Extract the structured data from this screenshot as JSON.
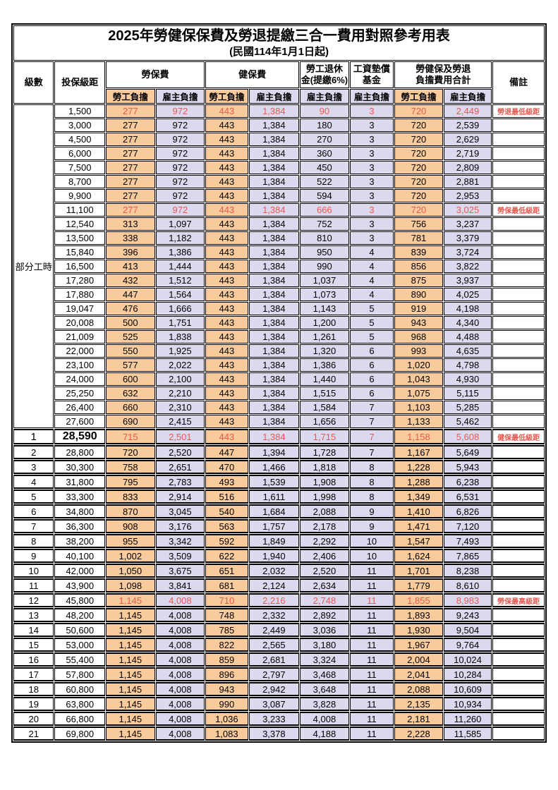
{
  "title": "2025年勞健保保費及勞退提繳三合一費用對照參考用表",
  "subtitle": "(民國114年1月1日起)",
  "header": {
    "level": "級數",
    "bracket": "投保級距",
    "labor_insurance": "勞保費",
    "health_insurance": "健保費",
    "pension_line1": "勞工退休",
    "pension_line2": "金(提繳6%)",
    "wage_fund_line1": "工資墊償",
    "wage_fund_line2": "基金",
    "total_line1": "勞健保及勞退",
    "total_line2": "負擔費用合計",
    "remark": "備註",
    "employee": "勞工負擔",
    "employer": "雇主負擔"
  },
  "part_time_label": "部分工時",
  "colors": {
    "employee_bg": "#F9CB9C",
    "employer_bg": "#DCD9EE",
    "highlight_text": "#E85850"
  },
  "rows": [
    {
      "section": "pt",
      "bracket": "1,500",
      "li_emp": "277",
      "li_er": "972",
      "hi_emp": "443",
      "hi_er": "1,384",
      "pension": "90",
      "wage_fund": "3",
      "total_emp": "720",
      "total_er": "2,449",
      "red": true,
      "remark": "勞退最低級距"
    },
    {
      "section": "pt",
      "bracket": "3,000",
      "li_emp": "277",
      "li_er": "972",
      "hi_emp": "443",
      "hi_er": "1,384",
      "pension": "180",
      "wage_fund": "3",
      "total_emp": "720",
      "total_er": "2,539",
      "red": false,
      "remark": ""
    },
    {
      "section": "pt",
      "bracket": "4,500",
      "li_emp": "277",
      "li_er": "972",
      "hi_emp": "443",
      "hi_er": "1,384",
      "pension": "270",
      "wage_fund": "3",
      "total_emp": "720",
      "total_er": "2,629",
      "red": false,
      "remark": ""
    },
    {
      "section": "pt",
      "bracket": "6,000",
      "li_emp": "277",
      "li_er": "972",
      "hi_emp": "443",
      "hi_er": "1,384",
      "pension": "360",
      "wage_fund": "3",
      "total_emp": "720",
      "total_er": "2,719",
      "red": false,
      "remark": ""
    },
    {
      "section": "pt",
      "bracket": "7,500",
      "li_emp": "277",
      "li_er": "972",
      "hi_emp": "443",
      "hi_er": "1,384",
      "pension": "450",
      "wage_fund": "3",
      "total_emp": "720",
      "total_er": "2,809",
      "red": false,
      "remark": ""
    },
    {
      "section": "pt",
      "bracket": "8,700",
      "li_emp": "277",
      "li_er": "972",
      "hi_emp": "443",
      "hi_er": "1,384",
      "pension": "522",
      "wage_fund": "3",
      "total_emp": "720",
      "total_er": "2,881",
      "red": false,
      "remark": ""
    },
    {
      "section": "pt",
      "bracket": "9,900",
      "li_emp": "277",
      "li_er": "972",
      "hi_emp": "443",
      "hi_er": "1,384",
      "pension": "594",
      "wage_fund": "3",
      "total_emp": "720",
      "total_er": "2,953",
      "red": false,
      "remark": ""
    },
    {
      "section": "pt",
      "bracket": "11,100",
      "li_emp": "277",
      "li_er": "972",
      "hi_emp": "443",
      "hi_er": "1,384",
      "pension": "666",
      "wage_fund": "3",
      "total_emp": "720",
      "total_er": "3,025",
      "red": true,
      "remark": "勞保最低級距"
    },
    {
      "section": "pt",
      "bracket": "12,540",
      "li_emp": "313",
      "li_er": "1,097",
      "hi_emp": "443",
      "hi_er": "1,384",
      "pension": "752",
      "wage_fund": "3",
      "total_emp": "756",
      "total_er": "3,237",
      "red": false,
      "remark": ""
    },
    {
      "section": "pt",
      "bracket": "13,500",
      "li_emp": "338",
      "li_er": "1,182",
      "hi_emp": "443",
      "hi_er": "1,384",
      "pension": "810",
      "wage_fund": "3",
      "total_emp": "781",
      "total_er": "3,379",
      "red": false,
      "remark": ""
    },
    {
      "section": "pt",
      "bracket": "15,840",
      "li_emp": "396",
      "li_er": "1,386",
      "hi_emp": "443",
      "hi_er": "1,384",
      "pension": "950",
      "wage_fund": "4",
      "total_emp": "839",
      "total_er": "3,724",
      "red": false,
      "remark": ""
    },
    {
      "section": "pt",
      "bracket": "16,500",
      "li_emp": "413",
      "li_er": "1,444",
      "hi_emp": "443",
      "hi_er": "1,384",
      "pension": "990",
      "wage_fund": "4",
      "total_emp": "856",
      "total_er": "3,822",
      "red": false,
      "remark": ""
    },
    {
      "section": "pt",
      "bracket": "17,280",
      "li_emp": "432",
      "li_er": "1,512",
      "hi_emp": "443",
      "hi_er": "1,384",
      "pension": "1,037",
      "wage_fund": "4",
      "total_emp": "875",
      "total_er": "3,937",
      "red": false,
      "remark": ""
    },
    {
      "section": "pt",
      "bracket": "17,880",
      "li_emp": "447",
      "li_er": "1,564",
      "hi_emp": "443",
      "hi_er": "1,384",
      "pension": "1,073",
      "wage_fund": "4",
      "total_emp": "890",
      "total_er": "4,025",
      "red": false,
      "remark": ""
    },
    {
      "section": "pt",
      "bracket": "19,047",
      "li_emp": "476",
      "li_er": "1,666",
      "hi_emp": "443",
      "hi_er": "1,384",
      "pension": "1,143",
      "wage_fund": "5",
      "total_emp": "919",
      "total_er": "4,198",
      "red": false,
      "remark": ""
    },
    {
      "section": "pt",
      "bracket": "20,008",
      "li_emp": "500",
      "li_er": "1,751",
      "hi_emp": "443",
      "hi_er": "1,384",
      "pension": "1,200",
      "wage_fund": "5",
      "total_emp": "943",
      "total_er": "4,340",
      "red": false,
      "remark": ""
    },
    {
      "section": "pt",
      "bracket": "21,009",
      "li_emp": "525",
      "li_er": "1,838",
      "hi_emp": "443",
      "hi_er": "1,384",
      "pension": "1,261",
      "wage_fund": "5",
      "total_emp": "968",
      "total_er": "4,488",
      "red": false,
      "remark": ""
    },
    {
      "section": "pt",
      "bracket": "22,000",
      "li_emp": "550",
      "li_er": "1,925",
      "hi_emp": "443",
      "hi_er": "1,384",
      "pension": "1,320",
      "wage_fund": "6",
      "total_emp": "993",
      "total_er": "4,635",
      "red": false,
      "remark": ""
    },
    {
      "section": "pt",
      "bracket": "23,100",
      "li_emp": "577",
      "li_er": "2,022",
      "hi_emp": "443",
      "hi_er": "1,384",
      "pension": "1,386",
      "wage_fund": "6",
      "total_emp": "1,020",
      "total_er": "4,798",
      "red": false,
      "remark": ""
    },
    {
      "section": "pt",
      "bracket": "24,000",
      "li_emp": "600",
      "li_er": "2,100",
      "hi_emp": "443",
      "hi_er": "1,384",
      "pension": "1,440",
      "wage_fund": "6",
      "total_emp": "1,043",
      "total_er": "4,930",
      "red": false,
      "remark": ""
    },
    {
      "section": "pt",
      "bracket": "25,250",
      "li_emp": "632",
      "li_er": "2,210",
      "hi_emp": "443",
      "hi_er": "1,384",
      "pension": "1,515",
      "wage_fund": "6",
      "total_emp": "1,075",
      "total_er": "5,115",
      "red": false,
      "remark": ""
    },
    {
      "section": "pt",
      "bracket": "26,400",
      "li_emp": "660",
      "li_er": "2,310",
      "hi_emp": "443",
      "hi_er": "1,384",
      "pension": "1,584",
      "wage_fund": "7",
      "total_emp": "1,103",
      "total_er": "5,285",
      "red": false,
      "remark": ""
    },
    {
      "section": "pt",
      "bracket": "27,600",
      "li_emp": "690",
      "li_er": "2,415",
      "hi_emp": "443",
      "hi_er": "1,384",
      "pension": "1,656",
      "wage_fund": "7",
      "total_emp": "1,133",
      "total_er": "5,462",
      "red": false,
      "remark": ""
    },
    {
      "section": "num",
      "level": "1",
      "bracket": "28,590",
      "li_emp": "715",
      "li_er": "2,501",
      "hi_emp": "443",
      "hi_er": "1,384",
      "pension": "1,715",
      "wage_fund": "7",
      "total_emp": "1,158",
      "total_er": "5,608",
      "red": true,
      "big": true,
      "remark": "健保最低級距"
    },
    {
      "section": "num",
      "level": "2",
      "bracket": "28,800",
      "li_emp": "720",
      "li_er": "2,520",
      "hi_emp": "447",
      "hi_er": "1,394",
      "pension": "1,728",
      "wage_fund": "7",
      "total_emp": "1,167",
      "total_er": "5,649",
      "red": false,
      "remark": ""
    },
    {
      "section": "num",
      "level": "3",
      "bracket": "30,300",
      "li_emp": "758",
      "li_er": "2,651",
      "hi_emp": "470",
      "hi_er": "1,466",
      "pension": "1,818",
      "wage_fund": "8",
      "total_emp": "1,228",
      "total_er": "5,943",
      "red": false,
      "remark": ""
    },
    {
      "section": "num",
      "level": "4",
      "bracket": "31,800",
      "li_emp": "795",
      "li_er": "2,783",
      "hi_emp": "493",
      "hi_er": "1,539",
      "pension": "1,908",
      "wage_fund": "8",
      "total_emp": "1,288",
      "total_er": "6,238",
      "red": false,
      "remark": ""
    },
    {
      "section": "num",
      "level": "5",
      "bracket": "33,300",
      "li_emp": "833",
      "li_er": "2,914",
      "hi_emp": "516",
      "hi_er": "1,611",
      "pension": "1,998",
      "wage_fund": "8",
      "total_emp": "1,349",
      "total_er": "6,531",
      "red": false,
      "remark": ""
    },
    {
      "section": "num",
      "level": "6",
      "bracket": "34,800",
      "li_emp": "870",
      "li_er": "3,045",
      "hi_emp": "540",
      "hi_er": "1,684",
      "pension": "2,088",
      "wage_fund": "9",
      "total_emp": "1,410",
      "total_er": "6,826",
      "red": false,
      "remark": ""
    },
    {
      "section": "num",
      "level": "7",
      "bracket": "36,300",
      "li_emp": "908",
      "li_er": "3,176",
      "hi_emp": "563",
      "hi_er": "1,757",
      "pension": "2,178",
      "wage_fund": "9",
      "total_emp": "1,471",
      "total_er": "7,120",
      "red": false,
      "remark": ""
    },
    {
      "section": "num",
      "level": "8",
      "bracket": "38,200",
      "li_emp": "955",
      "li_er": "3,342",
      "hi_emp": "592",
      "hi_er": "1,849",
      "pension": "2,292",
      "wage_fund": "10",
      "total_emp": "1,547",
      "total_er": "7,493",
      "red": false,
      "remark": ""
    },
    {
      "section": "num",
      "level": "9",
      "bracket": "40,100",
      "li_emp": "1,002",
      "li_er": "3,509",
      "hi_emp": "622",
      "hi_er": "1,940",
      "pension": "2,406",
      "wage_fund": "10",
      "total_emp": "1,624",
      "total_er": "7,865",
      "red": false,
      "remark": ""
    },
    {
      "section": "num",
      "level": "10",
      "bracket": "42,000",
      "li_emp": "1,050",
      "li_er": "3,675",
      "hi_emp": "651",
      "hi_er": "2,032",
      "pension": "2,520",
      "wage_fund": "11",
      "total_emp": "1,701",
      "total_er": "8,238",
      "red": false,
      "remark": ""
    },
    {
      "section": "num",
      "level": "11",
      "bracket": "43,900",
      "li_emp": "1,098",
      "li_er": "3,841",
      "hi_emp": "681",
      "hi_er": "2,124",
      "pension": "2,634",
      "wage_fund": "11",
      "total_emp": "1,779",
      "total_er": "8,610",
      "red": false,
      "remark": ""
    },
    {
      "section": "num",
      "level": "12",
      "bracket": "45,800",
      "li_emp": "1,145",
      "li_er": "4,008",
      "hi_emp": "710",
      "hi_er": "2,216",
      "pension": "2,748",
      "wage_fund": "11",
      "total_emp": "1,855",
      "total_er": "8,983",
      "red": true,
      "remark": "勞保最高級距"
    },
    {
      "section": "num",
      "level": "13",
      "bracket": "48,200",
      "li_emp": "1,145",
      "li_er": "4,008",
      "hi_emp": "748",
      "hi_er": "2,332",
      "pension": "2,892",
      "wage_fund": "11",
      "total_emp": "1,893",
      "total_er": "9,243",
      "red": false,
      "remark": ""
    },
    {
      "section": "num",
      "level": "14",
      "bracket": "50,600",
      "li_emp": "1,145",
      "li_er": "4,008",
      "hi_emp": "785",
      "hi_er": "2,449",
      "pension": "3,036",
      "wage_fund": "11",
      "total_emp": "1,930",
      "total_er": "9,504",
      "red": false,
      "remark": ""
    },
    {
      "section": "num",
      "level": "15",
      "bracket": "53,000",
      "li_emp": "1,145",
      "li_er": "4,008",
      "hi_emp": "822",
      "hi_er": "2,565",
      "pension": "3,180",
      "wage_fund": "11",
      "total_emp": "1,967",
      "total_er": "9,764",
      "red": false,
      "remark": ""
    },
    {
      "section": "num",
      "level": "16",
      "bracket": "55,400",
      "li_emp": "1,145",
      "li_er": "4,008",
      "hi_emp": "859",
      "hi_er": "2,681",
      "pension": "3,324",
      "wage_fund": "11",
      "total_emp": "2,004",
      "total_er": "10,024",
      "red": false,
      "remark": ""
    },
    {
      "section": "num",
      "level": "17",
      "bracket": "57,800",
      "li_emp": "1,145",
      "li_er": "4,008",
      "hi_emp": "896",
      "hi_er": "2,797",
      "pension": "3,468",
      "wage_fund": "11",
      "total_emp": "2,041",
      "total_er": "10,284",
      "red": false,
      "remark": ""
    },
    {
      "section": "num",
      "level": "18",
      "bracket": "60,800",
      "li_emp": "1,145",
      "li_er": "4,008",
      "hi_emp": "943",
      "hi_er": "2,942",
      "pension": "3,648",
      "wage_fund": "11",
      "total_emp": "2,088",
      "total_er": "10,609",
      "red": false,
      "remark": ""
    },
    {
      "section": "num",
      "level": "19",
      "bracket": "63,800",
      "li_emp": "1,145",
      "li_er": "4,008",
      "hi_emp": "990",
      "hi_er": "3,087",
      "pension": "3,828",
      "wage_fund": "11",
      "total_emp": "2,135",
      "total_er": "10,934",
      "red": false,
      "remark": ""
    },
    {
      "section": "num",
      "level": "20",
      "bracket": "66,800",
      "li_emp": "1,145",
      "li_er": "4,008",
      "hi_emp": "1,036",
      "hi_er": "3,233",
      "pension": "4,008",
      "wage_fund": "11",
      "total_emp": "2,181",
      "total_er": "11,260",
      "red": false,
      "remark": ""
    },
    {
      "section": "num",
      "level": "21",
      "bracket": "69,800",
      "li_emp": "1,145",
      "li_er": "4,008",
      "hi_emp": "1,083",
      "hi_er": "3,378",
      "pension": "4,188",
      "wage_fund": "11",
      "total_emp": "2,228",
      "total_er": "11,585",
      "red": false,
      "remark": ""
    }
  ]
}
